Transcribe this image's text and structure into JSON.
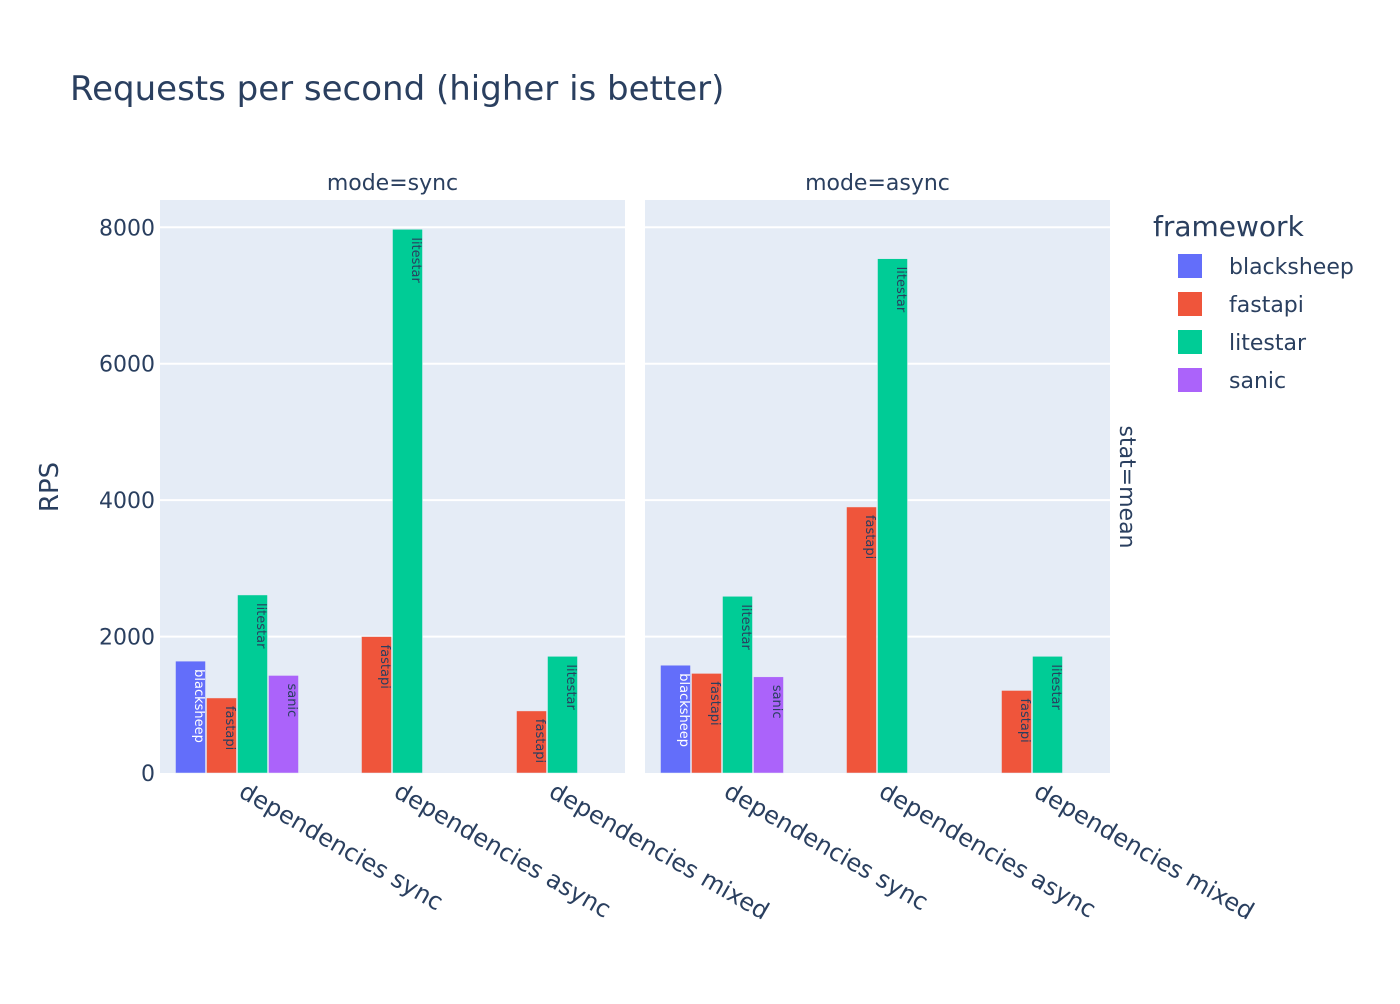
{
  "chart_data": {
    "type": "bar",
    "title": "Requests per second (higher is better)",
    "ylabel": "RPS",
    "xlabel": "",
    "ylim": [
      0,
      8400
    ],
    "yticks": [
      0,
      2000,
      4000,
      6000,
      8000
    ],
    "grid": true,
    "legend_title": "framework",
    "legend_position": "top-right",
    "row_facet_label": "stat=mean",
    "categories": [
      "dependencies sync",
      "dependencies async",
      "dependencies mixed"
    ],
    "frameworks": [
      {
        "name": "blacksheep",
        "color": "#636efa"
      },
      {
        "name": "fastapi",
        "color": "#EF553B"
      },
      {
        "name": "litestar",
        "color": "#00cc96"
      },
      {
        "name": "sanic",
        "color": "#ab63fa"
      }
    ],
    "facets": [
      {
        "label": "mode=sync",
        "series": [
          {
            "name": "blacksheep",
            "values": [
              1640,
              null,
              null
            ]
          },
          {
            "name": "fastapi",
            "values": [
              1100,
              2000,
              910
            ]
          },
          {
            "name": "litestar",
            "values": [
              2610,
              7970,
              1710
            ]
          },
          {
            "name": "sanic",
            "values": [
              1430,
              null,
              null
            ]
          }
        ]
      },
      {
        "label": "mode=async",
        "series": [
          {
            "name": "blacksheep",
            "values": [
              1580,
              null,
              null
            ]
          },
          {
            "name": "fastapi",
            "values": [
              1460,
              3900,
              1210
            ]
          },
          {
            "name": "litestar",
            "values": [
              2590,
              7540,
              1710
            ]
          },
          {
            "name": "sanic",
            "values": [
              1410,
              null,
              null
            ]
          }
        ]
      }
    ]
  }
}
